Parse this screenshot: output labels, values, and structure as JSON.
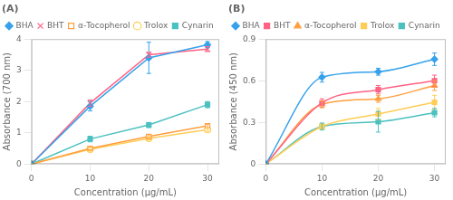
{
  "chart_data": [
    {
      "type": "line",
      "title": "(A)",
      "x_label": "Concentration (μg/mL)",
      "y_label": "Absorbance (700 nm)",
      "x": [
        0,
        10,
        20,
        30
      ],
      "xlim": [
        0,
        32
      ],
      "xticks": [
        0,
        10,
        20,
        30
      ],
      "ylim": [
        0,
        4
      ],
      "yticks": [
        0,
        1,
        2,
        3,
        4
      ],
      "grid": false,
      "legend": "upper left",
      "series": [
        {
          "name": "BHA",
          "values": [
            0,
            1.85,
            3.4,
            3.82
          ],
          "yerr": [
            0,
            0.15,
            0.5,
            0.1
          ],
          "marker": "diamond",
          "line_style": "solid"
        },
        {
          "name": "BHT",
          "values": [
            0,
            1.95,
            3.5,
            3.68
          ],
          "yerr": [
            0,
            0.1,
            0.08,
            0.08
          ],
          "marker": "x",
          "line_style": "solid"
        },
        {
          "name": "α-Tocopherol",
          "values": [
            0,
            0.5,
            0.88,
            1.22
          ],
          "yerr": [
            0,
            0.05,
            0.06,
            0.06
          ],
          "marker": "open_square",
          "line_style": "solid"
        },
        {
          "name": "Trolox",
          "values": [
            0,
            0.47,
            0.82,
            1.1
          ],
          "yerr": [
            0,
            0.06,
            0.05,
            0.05
          ],
          "marker": "open_circle",
          "line_style": "solid"
        },
        {
          "name": "Cynarin",
          "values": [
            0,
            0.8,
            1.25,
            1.9
          ],
          "yerr": [
            0,
            0.09,
            0.08,
            0.1
          ],
          "marker": "square",
          "line_style": "solid"
        }
      ]
    },
    {
      "type": "line",
      "title": "(B)",
      "x_label": "Concentration (μg/mL)",
      "y_label": "Absorbance (450 nm)",
      "x": [
        0,
        10,
        20,
        30
      ],
      "xlim": [
        0,
        32
      ],
      "xticks": [
        0,
        10,
        20,
        30
      ],
      "ylim": [
        0,
        0.9
      ],
      "yticks": [
        0,
        0.3,
        0.6,
        0.9
      ],
      "grid": false,
      "legend": "upper left",
      "series": [
        {
          "name": "BHA",
          "values": [
            0,
            0.625,
            0.665,
            0.755
          ],
          "yerr": [
            0,
            0.035,
            0.025,
            0.045
          ],
          "marker": "diamond",
          "line_style": "smooth"
        },
        {
          "name": "BHT",
          "values": [
            0,
            0.44,
            0.535,
            0.6
          ],
          "yerr": [
            0,
            0.03,
            0.03,
            0.04
          ],
          "marker": "square",
          "line_style": "smooth"
        },
        {
          "name": "α-Tocopherol",
          "values": [
            0,
            0.43,
            0.47,
            0.565
          ],
          "yerr": [
            0,
            0.025,
            0.025,
            0.035
          ],
          "marker": "triangle",
          "line_style": "smooth"
        },
        {
          "name": "Trolox",
          "values": [
            0,
            0.27,
            0.36,
            0.445
          ],
          "yerr": [
            0,
            0.02,
            0.04,
            0.05
          ],
          "marker": "square",
          "line_style": "smooth"
        },
        {
          "name": "Cynarin",
          "values": [
            0,
            0.27,
            0.305,
            0.37
          ],
          "yerr": [
            0,
            0.025,
            0.075,
            0.03
          ],
          "marker": "square",
          "line_style": "smooth"
        }
      ]
    }
  ]
}
